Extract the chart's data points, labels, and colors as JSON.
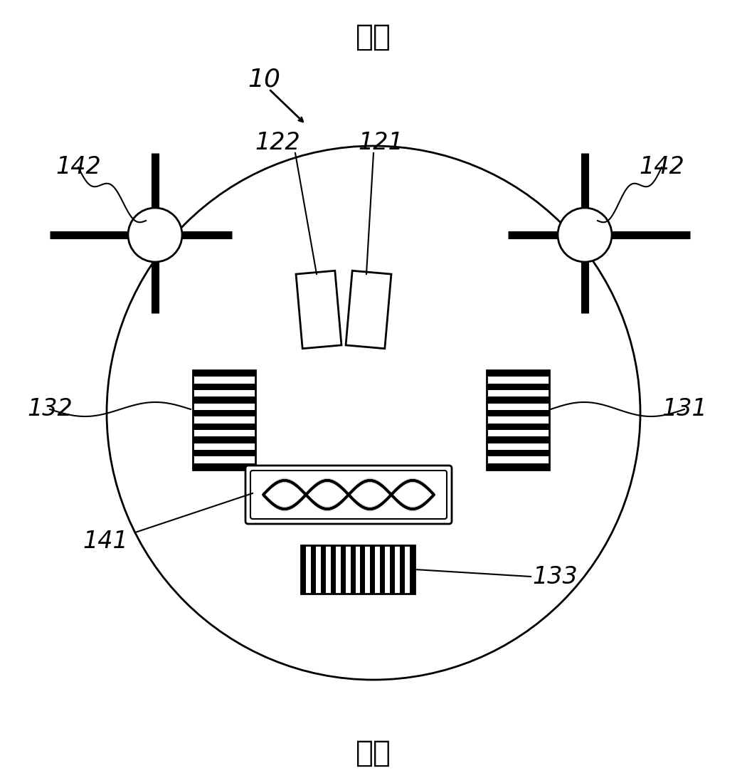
{
  "title_top": "前方",
  "title_bottom": "后方",
  "label_10": "10",
  "label_121": "121",
  "label_122": "122",
  "label_131": "131",
  "label_132": "132",
  "label_133": "133",
  "label_141": "141",
  "label_142_left": "142",
  "label_142_right": "142",
  "bg_color": "#ffffff",
  "line_color": "#000000"
}
